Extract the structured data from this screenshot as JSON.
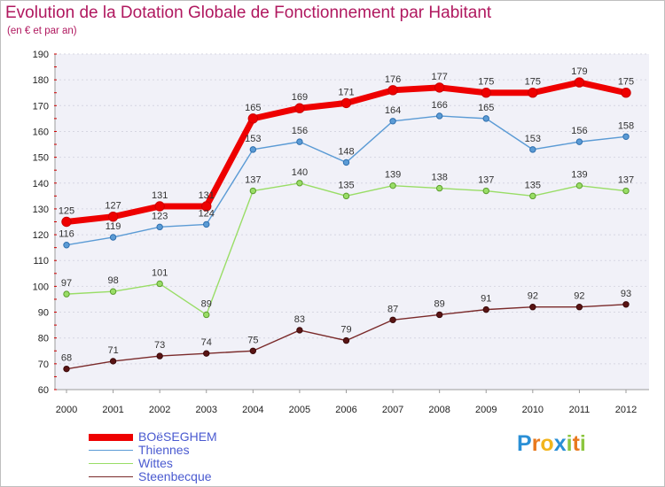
{
  "chart_data": {
    "type": "line",
    "title": "Evolution de la Dotation Globale de Fonctionnement par Habitant",
    "subtitle": "(en € et par an)",
    "categories": [
      "2000",
      "2001",
      "2002",
      "2003",
      "2004",
      "2005",
      "2006",
      "2007",
      "2008",
      "2009",
      "2010",
      "2011",
      "2012"
    ],
    "ylim": [
      60,
      190
    ],
    "yticks": [
      60,
      70,
      80,
      90,
      100,
      110,
      120,
      130,
      140,
      150,
      160,
      170,
      180,
      190
    ],
    "grid": true,
    "legend_position": "bottom-left",
    "series": [
      {
        "name": "BOëSEGHEM",
        "color": "#ee0000",
        "values": [
          125,
          127,
          131,
          131,
          165,
          169,
          171,
          176,
          177,
          175,
          175,
          179,
          175
        ],
        "labels": [
          "125",
          "127",
          "131",
          "131",
          "165",
          "169",
          "171",
          "176",
          "177",
          "175",
          "175",
          "179",
          "175"
        ]
      },
      {
        "name": "Thiennes",
        "color": "#5b9bd5",
        "values": [
          116,
          119,
          123,
          124,
          153,
          156,
          148,
          164,
          166,
          165,
          153,
          156,
          158
        ],
        "labels": [
          "116",
          "119",
          "123",
          "124",
          "153",
          "156",
          "148",
          "164",
          "166",
          "165",
          "153",
          "156",
          "158"
        ]
      },
      {
        "name": "Wittes",
        "color": "#99dd66",
        "values": [
          97,
          98,
          101,
          89,
          137,
          140,
          135,
          139,
          138,
          137,
          135,
          139,
          137
        ],
        "labels": [
          "97",
          "98",
          "101",
          "89",
          "137",
          "140",
          "135",
          "139",
          "138",
          "137",
          "135",
          "139",
          "137"
        ]
      },
      {
        "name": "Steenbecque",
        "color": "#7a2a2a",
        "values": [
          68,
          71,
          73,
          74,
          75,
          83,
          79,
          87,
          89,
          91,
          92,
          92,
          93
        ],
        "labels": [
          "68",
          "71",
          "73",
          "74",
          "75",
          "83",
          "79",
          "87",
          "89",
          "91",
          "92",
          "92",
          "93"
        ]
      }
    ]
  },
  "logo": {
    "text": "Proxiti",
    "letters": [
      "P",
      "r",
      "o",
      "x",
      "i",
      "t",
      "i"
    ],
    "colors": [
      "#2a8fd6",
      "#e8791e",
      "#f2b51d",
      "#2a8fd6",
      "#8cc63f",
      "#e8791e",
      "#8cc63f"
    ]
  }
}
